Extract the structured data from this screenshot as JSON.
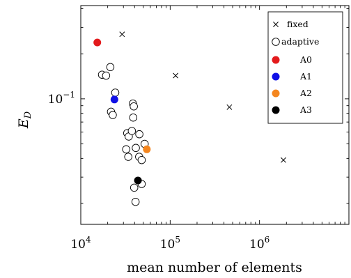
{
  "chart_data": {
    "type": "scatter",
    "xlabel": "mean number of elements",
    "ylabel": "E_D",
    "xscale": "log",
    "yscale": "log",
    "xlim": [
      10000,
      10000000
    ],
    "ylim": [
      0.0145,
      0.42
    ],
    "x_ticks": [
      {
        "value": 10000,
        "base": "10",
        "exp": "4"
      },
      {
        "value": 100000,
        "base": "10",
        "exp": "5"
      },
      {
        "value": 1000000,
        "base": "10",
        "exp": "6"
      }
    ],
    "y_ticks": [
      {
        "value": 0.1,
        "base": "10",
        "exp": "−1"
      }
    ],
    "grid": false,
    "legend_position": "top-right",
    "series": [
      {
        "name": "fixed",
        "marker": "cross",
        "color": "#000000",
        "points": [
          {
            "x": 29000,
            "y": 0.27
          },
          {
            "x": 115000,
            "y": 0.143
          },
          {
            "x": 460000,
            "y": 0.088
          },
          {
            "x": 1850000,
            "y": 0.039
          }
        ]
      },
      {
        "name": "adaptive",
        "marker": "open-circle",
        "color": "#000000",
        "points": [
          {
            "x": 17300,
            "y": 0.145
          },
          {
            "x": 19200,
            "y": 0.143
          },
          {
            "x": 21400,
            "y": 0.163
          },
          {
            "x": 24300,
            "y": 0.11
          },
          {
            "x": 21800,
            "y": 0.082
          },
          {
            "x": 22800,
            "y": 0.078
          },
          {
            "x": 33100,
            "y": 0.059
          },
          {
            "x": 34400,
            "y": 0.056
          },
          {
            "x": 37300,
            "y": 0.061
          },
          {
            "x": 38300,
            "y": 0.093
          },
          {
            "x": 39200,
            "y": 0.089
          },
          {
            "x": 38600,
            "y": 0.075
          },
          {
            "x": 45200,
            "y": 0.058
          },
          {
            "x": 51800,
            "y": 0.05
          },
          {
            "x": 32200,
            "y": 0.046
          },
          {
            "x": 34000,
            "y": 0.041
          },
          {
            "x": 41300,
            "y": 0.047
          },
          {
            "x": 45000,
            "y": 0.041
          },
          {
            "x": 48000,
            "y": 0.039
          },
          {
            "x": 48000,
            "y": 0.027
          },
          {
            "x": 39600,
            "y": 0.0255
          },
          {
            "x": 41000,
            "y": 0.0205
          }
        ]
      },
      {
        "name": "A0",
        "marker": "filled-circle",
        "color": "#e31a1c",
        "points": [
          {
            "x": 15300,
            "y": 0.238
          }
        ]
      },
      {
        "name": "A1",
        "marker": "filled-circle",
        "color": "#1010e6",
        "points": [
          {
            "x": 23800,
            "y": 0.099
          }
        ]
      },
      {
        "name": "A2",
        "marker": "filled-circle",
        "color": "#f4861f",
        "points": [
          {
            "x": 54800,
            "y": 0.046
          }
        ]
      },
      {
        "name": "A3",
        "marker": "filled-circle",
        "color": "#000000",
        "points": [
          {
            "x": 43600,
            "y": 0.0285
          }
        ]
      }
    ]
  }
}
